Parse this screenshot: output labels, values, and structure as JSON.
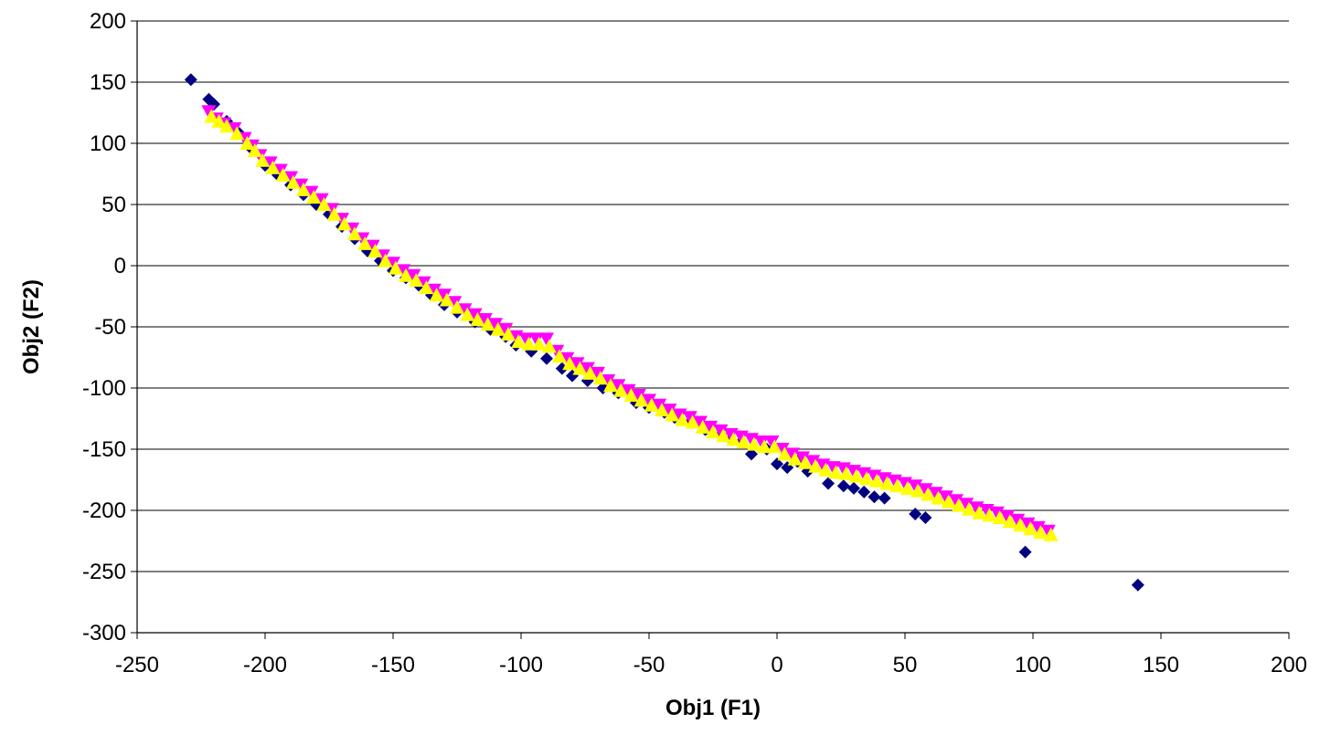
{
  "chart_data": {
    "type": "scatter",
    "title": "",
    "xlabel": "Obj1 (F1)",
    "ylabel": "Obj2 (F2)",
    "xlim": [
      -250,
      200
    ],
    "ylim": [
      -300,
      200
    ],
    "x_ticks": [
      -250,
      -200,
      -150,
      -100,
      -50,
      0,
      50,
      100,
      150,
      200
    ],
    "y_ticks": [
      -300,
      -250,
      -200,
      -150,
      -100,
      -50,
      0,
      50,
      100,
      150,
      200
    ],
    "grid": "horizontal",
    "legend": "none",
    "series": [
      {
        "marker": "diamond",
        "color": "#000080",
        "points": [
          [
            -229,
            152
          ],
          [
            -222,
            136
          ],
          [
            -220,
            132
          ],
          [
            -215,
            118
          ],
          [
            -210,
            108
          ],
          [
            -205,
            95
          ],
          [
            -200,
            82
          ],
          [
            -195,
            74
          ],
          [
            -190,
            66
          ],
          [
            -185,
            58
          ],
          [
            -180,
            50
          ],
          [
            -175,
            42
          ],
          [
            -170,
            32
          ],
          [
            -165,
            22
          ],
          [
            -160,
            12
          ],
          [
            -155,
            4
          ],
          [
            -150,
            -4
          ],
          [
            -145,
            -10
          ],
          [
            -140,
            -16
          ],
          [
            -135,
            -24
          ],
          [
            -130,
            -32
          ],
          [
            -125,
            -38
          ],
          [
            -118,
            -46
          ],
          [
            -112,
            -52
          ],
          [
            -106,
            -58
          ],
          [
            -102,
            -65
          ],
          [
            -96,
            -70
          ],
          [
            -90,
            -76
          ],
          [
            -84,
            -84
          ],
          [
            -80,
            -90
          ],
          [
            -74,
            -94
          ],
          [
            -68,
            -100
          ],
          [
            -62,
            -104
          ],
          [
            -55,
            -112
          ],
          [
            -50,
            -116
          ],
          [
            -44,
            -120
          ],
          [
            -40,
            -124
          ],
          [
            -34,
            -128
          ],
          [
            -28,
            -134
          ],
          [
            -22,
            -138
          ],
          [
            -18,
            -142
          ],
          [
            -14,
            -144
          ],
          [
            -10,
            -154
          ],
          [
            -4,
            -150
          ],
          [
            0,
            -162
          ],
          [
            4,
            -165
          ],
          [
            8,
            -160
          ],
          [
            12,
            -168
          ],
          [
            20,
            -178
          ],
          [
            26,
            -180
          ],
          [
            30,
            -182
          ],
          [
            34,
            -185
          ],
          [
            38,
            -189
          ],
          [
            42,
            -190
          ],
          [
            54,
            -203
          ],
          [
            58,
            -206
          ],
          [
            97,
            -234
          ],
          [
            141,
            -261
          ]
        ]
      },
      {
        "marker": "triangle-down",
        "color": "#ff00ff",
        "points": [
          [
            -222,
            126
          ],
          [
            -219,
            120
          ],
          [
            -216,
            116
          ],
          [
            -212,
            112
          ],
          [
            -208,
            104
          ],
          [
            -205,
            98
          ],
          [
            -202,
            90
          ],
          [
            -198,
            84
          ],
          [
            -194,
            78
          ],
          [
            -190,
            72
          ],
          [
            -186,
            66
          ],
          [
            -182,
            60
          ],
          [
            -178,
            54
          ],
          [
            -174,
            46
          ],
          [
            -170,
            38
          ],
          [
            -166,
            30
          ],
          [
            -162,
            22
          ],
          [
            -158,
            16
          ],
          [
            -154,
            8
          ],
          [
            -150,
            2
          ],
          [
            -146,
            -4
          ],
          [
            -142,
            -8
          ],
          [
            -138,
            -14
          ],
          [
            -134,
            -20
          ],
          [
            -130,
            -24
          ],
          [
            -126,
            -30
          ],
          [
            -122,
            -36
          ],
          [
            -118,
            -40
          ],
          [
            -114,
            -44
          ],
          [
            -110,
            -48
          ],
          [
            -106,
            -52
          ],
          [
            -102,
            -58
          ],
          [
            -98,
            -60
          ],
          [
            -94,
            -60
          ],
          [
            -90,
            -60
          ],
          [
            -86,
            -70
          ],
          [
            -82,
            -76
          ],
          [
            -78,
            -80
          ],
          [
            -74,
            -84
          ],
          [
            -70,
            -88
          ],
          [
            -66,
            -94
          ],
          [
            -62,
            -98
          ],
          [
            -58,
            -102
          ],
          [
            -54,
            -106
          ],
          [
            -50,
            -110
          ],
          [
            -46,
            -114
          ],
          [
            -42,
            -118
          ],
          [
            -38,
            -122
          ],
          [
            -34,
            -124
          ],
          [
            -30,
            -128
          ],
          [
            -26,
            -132
          ],
          [
            -22,
            -135
          ],
          [
            -18,
            -138
          ],
          [
            -14,
            -140
          ],
          [
            -10,
            -142
          ],
          [
            -6,
            -144
          ],
          [
            -2,
            -144
          ],
          [
            2,
            -150
          ],
          [
            6,
            -154
          ],
          [
            10,
            -157
          ],
          [
            14,
            -160
          ],
          [
            18,
            -163
          ],
          [
            22,
            -165
          ],
          [
            26,
            -166
          ],
          [
            30,
            -168
          ],
          [
            34,
            -170
          ],
          [
            38,
            -172
          ],
          [
            42,
            -174
          ],
          [
            46,
            -176
          ],
          [
            50,
            -178
          ],
          [
            54,
            -180
          ],
          [
            58,
            -183
          ],
          [
            62,
            -186
          ],
          [
            66,
            -189
          ],
          [
            70,
            -192
          ],
          [
            74,
            -195
          ],
          [
            78,
            -198
          ],
          [
            82,
            -200
          ],
          [
            86,
            -202
          ],
          [
            90,
            -205
          ],
          [
            94,
            -208
          ],
          [
            98,
            -211
          ],
          [
            102,
            -214
          ],
          [
            106,
            -217
          ]
        ]
      },
      {
        "marker": "triangle-up",
        "color": "#ffff00",
        "points": [
          [
            -221,
            122
          ],
          [
            -218,
            118
          ],
          [
            -215,
            114
          ],
          [
            -211,
            108
          ],
          [
            -207,
            100
          ],
          [
            -204,
            94
          ],
          [
            -201,
            86
          ],
          [
            -197,
            80
          ],
          [
            -193,
            74
          ],
          [
            -189,
            68
          ],
          [
            -185,
            62
          ],
          [
            -181,
            56
          ],
          [
            -177,
            50
          ],
          [
            -173,
            42
          ],
          [
            -169,
            34
          ],
          [
            -165,
            26
          ],
          [
            -161,
            18
          ],
          [
            -157,
            12
          ],
          [
            -153,
            4
          ],
          [
            -149,
            -2
          ],
          [
            -145,
            -8
          ],
          [
            -141,
            -12
          ],
          [
            -137,
            -18
          ],
          [
            -133,
            -24
          ],
          [
            -129,
            -28
          ],
          [
            -125,
            -34
          ],
          [
            -121,
            -40
          ],
          [
            -117,
            -44
          ],
          [
            -113,
            -48
          ],
          [
            -109,
            -52
          ],
          [
            -105,
            -56
          ],
          [
            -101,
            -62
          ],
          [
            -97,
            -64
          ],
          [
            -93,
            -64
          ],
          [
            -89,
            -66
          ],
          [
            -85,
            -74
          ],
          [
            -81,
            -80
          ],
          [
            -77,
            -84
          ],
          [
            -73,
            -88
          ],
          [
            -69,
            -92
          ],
          [
            -65,
            -98
          ],
          [
            -61,
            -102
          ],
          [
            -57,
            -106
          ],
          [
            -53,
            -110
          ],
          [
            -49,
            -114
          ],
          [
            -45,
            -118
          ],
          [
            -41,
            -122
          ],
          [
            -37,
            -126
          ],
          [
            -33,
            -128
          ],
          [
            -29,
            -132
          ],
          [
            -25,
            -136
          ],
          [
            -21,
            -139
          ],
          [
            -17,
            -142
          ],
          [
            -13,
            -144
          ],
          [
            -9,
            -146
          ],
          [
            -5,
            -148
          ],
          [
            -1,
            -148
          ],
          [
            3,
            -154
          ],
          [
            7,
            -158
          ],
          [
            11,
            -161
          ],
          [
            15,
            -164
          ],
          [
            19,
            -167
          ],
          [
            23,
            -169
          ],
          [
            27,
            -170
          ],
          [
            31,
            -172
          ],
          [
            35,
            -174
          ],
          [
            39,
            -176
          ],
          [
            43,
            -178
          ],
          [
            47,
            -180
          ],
          [
            51,
            -182
          ],
          [
            55,
            -184
          ],
          [
            59,
            -187
          ],
          [
            63,
            -190
          ],
          [
            67,
            -193
          ],
          [
            71,
            -196
          ],
          [
            75,
            -199
          ],
          [
            79,
            -202
          ],
          [
            83,
            -204
          ],
          [
            87,
            -206
          ],
          [
            91,
            -209
          ],
          [
            95,
            -212
          ],
          [
            99,
            -215
          ],
          [
            103,
            -218
          ],
          [
            107,
            -220
          ]
        ]
      }
    ]
  }
}
